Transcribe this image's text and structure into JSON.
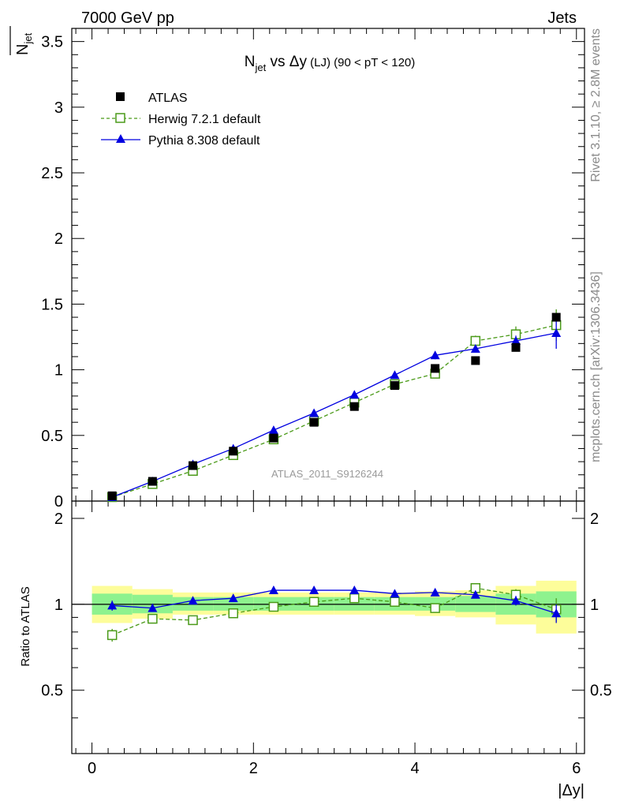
{
  "header": {
    "energy_label": "7000 GeV pp",
    "process_label": "Jets"
  },
  "side_labels": {
    "rivet": "Rivet 3.1.10, ≥ 2.8M events",
    "mcplots": "mcplots.cern.ch [arXiv:1306.3436]"
  },
  "chart_data": {
    "type": "scatter",
    "title_main": "N",
    "title_sub": "jet",
    "title_rest": " vs Δy",
    "title_small": " (LJ)",
    "title_range": " (90 < pT < 120)",
    "analysis_label": "ATLAS_2011_S9126244",
    "xlabel": "|Δy|",
    "ylabel_main": "N",
    "ylabel_sub": "jet",
    "ratio_ylabel": "Ratio to ATLAS",
    "xlim": [
      -0.25,
      6.1
    ],
    "ylim": [
      0,
      3.6
    ],
    "ratio_ylim": [
      0.3,
      2.3
    ],
    "x_ticks": [
      "0",
      "2",
      "4",
      "6"
    ],
    "y_ticks": [
      "0",
      "0.5",
      "1",
      "1.5",
      "2",
      "2.5",
      "3",
      "3.5"
    ],
    "ratio_ticks": [
      "0.5",
      "1",
      "2"
    ],
    "x": [
      0.25,
      0.75,
      1.25,
      1.75,
      2.25,
      2.75,
      3.25,
      3.75,
      4.25,
      4.75,
      5.25,
      5.75
    ],
    "x_edges": [
      0,
      0.5,
      1,
      1.5,
      2,
      2.5,
      3,
      3.5,
      4,
      4.5,
      5,
      5.5,
      6
    ],
    "series": [
      {
        "name": "ATLAS",
        "color": "#000000",
        "marker": "filled-square",
        "values": [
          0.04,
          0.15,
          0.27,
          0.38,
          0.48,
          0.6,
          0.72,
          0.88,
          1.01,
          1.07,
          1.17,
          1.4
        ]
      },
      {
        "name": "Herwig 7.2.1 default",
        "color": "#4a9a18",
        "marker": "open-square",
        "line": "dashed",
        "values": [
          0.03,
          0.13,
          0.23,
          0.35,
          0.47,
          0.61,
          0.75,
          0.89,
          0.97,
          1.22,
          1.27,
          1.34
        ],
        "errors": [
          0.01,
          0.01,
          0.01,
          0.01,
          0.01,
          0.01,
          0.01,
          0.01,
          0.01,
          0.04,
          0.06,
          0.12
        ],
        "ratio": [
          0.78,
          0.89,
          0.88,
          0.93,
          0.98,
          1.02,
          1.05,
          1.02,
          0.97,
          1.14,
          1.08,
          0.96
        ],
        "ratio_errors": [
          0.04,
          0.01,
          0.01,
          0.01,
          0.01,
          0.01,
          0.01,
          0.01,
          0.01,
          0.03,
          0.05,
          0.09
        ]
      },
      {
        "name": "Pythia 8.308 default",
        "color": "#0000e0",
        "marker": "filled-triangle",
        "line": "solid",
        "values": [
          0.03,
          0.15,
          0.28,
          0.4,
          0.54,
          0.67,
          0.81,
          0.96,
          1.11,
          1.16,
          1.22,
          1.28
        ],
        "errors": [
          0.01,
          0.01,
          0.01,
          0.01,
          0.01,
          0.01,
          0.01,
          0.01,
          0.03,
          0.03,
          0.04,
          0.12
        ],
        "ratio": [
          0.99,
          0.97,
          1.03,
          1.05,
          1.12,
          1.12,
          1.12,
          1.09,
          1.1,
          1.08,
          1.03,
          0.93
        ],
        "ratio_errors": [
          0.04,
          0.01,
          0.01,
          0.01,
          0.01,
          0.01,
          0.01,
          0.01,
          0.02,
          0.03,
          0.04,
          0.07
        ]
      }
    ],
    "bands": {
      "inner_color": "#8ef28e",
      "outer_color": "#fdfd9a",
      "inner": [
        [
          0.92,
          1.09
        ],
        [
          0.93,
          1.08
        ],
        [
          0.95,
          1.06
        ],
        [
          0.95,
          1.06
        ],
        [
          0.95,
          1.06
        ],
        [
          0.95,
          1.06
        ],
        [
          0.95,
          1.06
        ],
        [
          0.95,
          1.06
        ],
        [
          0.95,
          1.06
        ],
        [
          0.94,
          1.07
        ],
        [
          0.92,
          1.09
        ],
        [
          0.9,
          1.11
        ]
      ],
      "outer": [
        [
          0.86,
          1.16
        ],
        [
          0.89,
          1.13
        ],
        [
          0.92,
          1.1
        ],
        [
          0.92,
          1.1
        ],
        [
          0.92,
          1.1
        ],
        [
          0.92,
          1.1
        ],
        [
          0.92,
          1.1
        ],
        [
          0.92,
          1.1
        ],
        [
          0.91,
          1.11
        ],
        [
          0.9,
          1.12
        ],
        [
          0.85,
          1.16
        ],
        [
          0.79,
          1.21
        ]
      ]
    }
  }
}
